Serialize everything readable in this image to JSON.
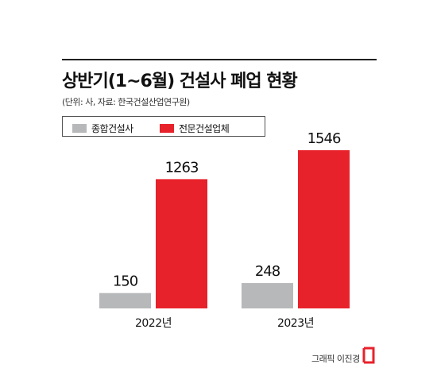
{
  "header": {
    "title": "상반기(1~6월) 건설사 폐업 현황",
    "source": "(단위: 사, 자료: 한국건설산업연구원)"
  },
  "legend": [
    {
      "label": "종합건설사",
      "color": "#b7b8ba"
    },
    {
      "label": "전문건설업체",
      "color": "#e8222b"
    }
  ],
  "chart_data": {
    "type": "bar",
    "categories": [
      "2022년",
      "2023년"
    ],
    "series": [
      {
        "name": "종합건설사",
        "values": [
          150,
          248
        ],
        "color": "#b7b8ba"
      },
      {
        "name": "전문건설업체",
        "values": [
          1263,
          1546
        ],
        "color": "#e8222b"
      }
    ],
    "title": "상반기(1~6월) 건설사 폐업 현황",
    "xlabel": "",
    "ylabel": "",
    "ylim": [
      0,
      1600
    ],
    "grid": false,
    "legend_position": "top-left"
  },
  "footer": {
    "credit": "그래픽 이진경",
    "logo_icon": "bracket-logo-icon"
  }
}
